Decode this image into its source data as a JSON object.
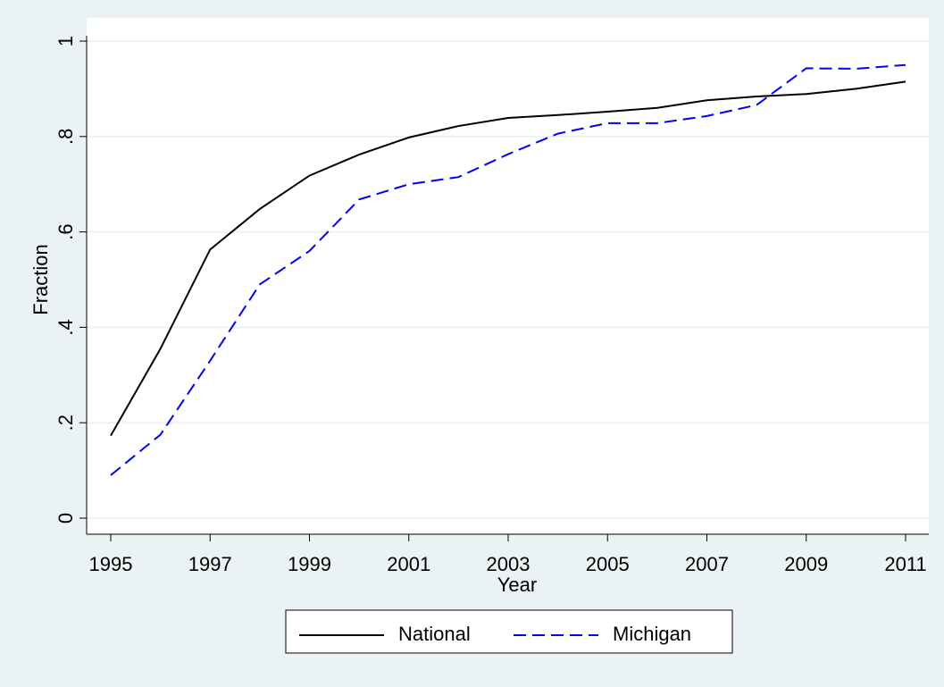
{
  "chart_data": {
    "type": "line",
    "x_label": "Year",
    "y_label": "Fraction",
    "x": [
      1995,
      1996,
      1997,
      1998,
      1999,
      2000,
      2001,
      2002,
      2003,
      2004,
      2005,
      2006,
      2007,
      2008,
      2009,
      2010,
      2011
    ],
    "series": [
      {
        "name": "National",
        "color": "#000000",
        "dash": "solid",
        "values": [
          0.173,
          0.355,
          0.563,
          0.648,
          0.718,
          0.762,
          0.798,
          0.822,
          0.839,
          0.845,
          0.852,
          0.86,
          0.876,
          0.884,
          0.889,
          0.9,
          0.915
        ]
      },
      {
        "name": "Michigan",
        "color": "#0000ff",
        "dash": "dashed",
        "values": [
          0.09,
          0.175,
          0.33,
          0.49,
          0.56,
          0.668,
          0.7,
          0.715,
          0.763,
          0.806,
          0.828,
          0.828,
          0.843,
          0.866,
          0.943,
          0.942,
          0.95
        ]
      }
    ],
    "xlim": [
      1995,
      2011
    ],
    "xticks": [
      1995,
      1997,
      1999,
      2001,
      2003,
      2005,
      2007,
      2009,
      2011
    ],
    "ylim": [
      0,
      1
    ],
    "yticks": [
      0,
      {
        "value": 0.2,
        "label": ".2"
      },
      {
        "value": 0.4,
        "label": ".4"
      },
      {
        "value": 0.6,
        "label": ".6"
      },
      {
        "value": 0.8,
        "label": ".8"
      },
      1
    ],
    "grid": true,
    "legend": "bottom"
  }
}
